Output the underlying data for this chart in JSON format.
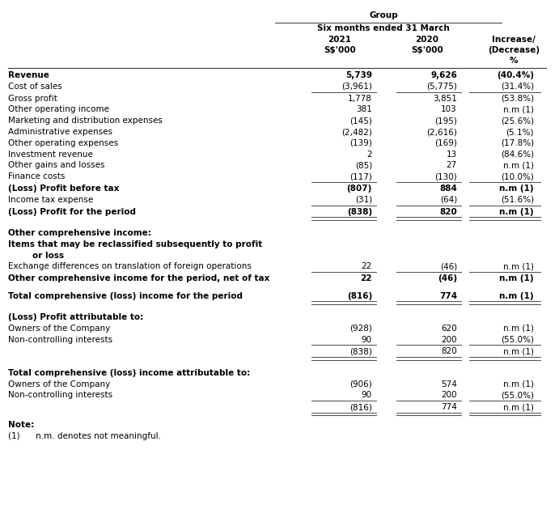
{
  "title": "Group",
  "subtitle": "Six months ended 31 March",
  "col_headers_line1": [
    "2021",
    "2020",
    "Increase/"
  ],
  "col_headers_line2": [
    "S$’000",
    "S$’000",
    "(Decrease)"
  ],
  "col_headers_line3": [
    "",
    "",
    "%"
  ],
  "rows": [
    {
      "label": "Revenue",
      "bold": true,
      "val2021": "5,739",
      "val2020": "9,626",
      "change": "(40.4%)",
      "indent": 0,
      "underline_after": false,
      "double_underline_after": false,
      "spacer": false,
      "empty_label": false
    },
    {
      "label": "Cost of sales",
      "bold": false,
      "val2021": "(3,961)",
      "val2020": "(5,775)",
      "change": "(31.4%)",
      "indent": 0,
      "underline_after": true,
      "double_underline_after": false,
      "spacer": false,
      "empty_label": false
    },
    {
      "label": "Gross profit",
      "bold": false,
      "val2021": "1,778",
      "val2020": "3,851",
      "change": "(53.8%)",
      "indent": 0,
      "underline_after": false,
      "double_underline_after": false,
      "spacer": false,
      "empty_label": false
    },
    {
      "label": "Other operating income",
      "bold": false,
      "val2021": "381",
      "val2020": "103",
      "change": "n.m (1)",
      "indent": 0,
      "underline_after": false,
      "double_underline_after": false,
      "spacer": false,
      "empty_label": false
    },
    {
      "label": "Marketing and distribution expenses",
      "bold": false,
      "val2021": "(145)",
      "val2020": "(195)",
      "change": "(25.6%)",
      "indent": 0,
      "underline_after": false,
      "double_underline_after": false,
      "spacer": false,
      "empty_label": false
    },
    {
      "label": "Administrative expenses",
      "bold": false,
      "val2021": "(2,482)",
      "val2020": "(2,616)",
      "change": "(5.1%)",
      "indent": 0,
      "underline_after": false,
      "double_underline_after": false,
      "spacer": false,
      "empty_label": false
    },
    {
      "label": "Other operating expenses",
      "bold": false,
      "val2021": "(139)",
      "val2020": "(169)",
      "change": "(17.8%)",
      "indent": 0,
      "underline_after": false,
      "double_underline_after": false,
      "spacer": false,
      "empty_label": false
    },
    {
      "label": "Investment revenue",
      "bold": false,
      "val2021": "2",
      "val2020": "13",
      "change": "(84.6%)",
      "indent": 0,
      "underline_after": false,
      "double_underline_after": false,
      "spacer": false,
      "empty_label": false
    },
    {
      "label": "Other gains and losses",
      "bold": false,
      "val2021": "(85)",
      "val2020": "27",
      "change": "n.m (1)",
      "indent": 0,
      "underline_after": false,
      "double_underline_after": false,
      "spacer": false,
      "empty_label": false
    },
    {
      "label": "Finance costs",
      "bold": false,
      "val2021": "(117)",
      "val2020": "(130)",
      "change": "(10.0%)",
      "indent": 0,
      "underline_after": true,
      "double_underline_after": false,
      "spacer": false,
      "empty_label": false
    },
    {
      "label": "(Loss) Profit before tax",
      "bold": true,
      "val2021": "(807)",
      "val2020": "884",
      "change": "n.m (1)",
      "indent": 0,
      "underline_after": false,
      "double_underline_after": false,
      "spacer": false,
      "empty_label": false
    },
    {
      "label": "Income tax expense",
      "bold": false,
      "val2021": "(31)",
      "val2020": "(64)",
      "change": "(51.6%)",
      "indent": 0,
      "underline_after": true,
      "double_underline_after": false,
      "spacer": false,
      "empty_label": false
    },
    {
      "label": "(Loss) Profit for the period",
      "bold": true,
      "val2021": "(838)",
      "val2020": "820",
      "change": "n.m (1)",
      "indent": 0,
      "underline_after": false,
      "double_underline_after": true,
      "spacer": false,
      "empty_label": false
    },
    {
      "label": "",
      "bold": false,
      "val2021": "",
      "val2020": "",
      "change": "",
      "indent": 0,
      "underline_after": false,
      "double_underline_after": false,
      "spacer": true,
      "empty_label": false
    },
    {
      "label": "Other comprehensive income:",
      "bold": true,
      "val2021": "",
      "val2020": "",
      "change": "",
      "indent": 0,
      "underline_after": false,
      "double_underline_after": false,
      "spacer": false,
      "empty_label": false
    },
    {
      "label": "Items that may be reclassified subsequently to profit",
      "bold": true,
      "val2021": "",
      "val2020": "",
      "change": "",
      "indent": 0,
      "underline_after": false,
      "double_underline_after": false,
      "spacer": false,
      "empty_label": false
    },
    {
      "label": "or loss",
      "bold": true,
      "val2021": "",
      "val2020": "",
      "change": "",
      "indent": 1,
      "underline_after": false,
      "double_underline_after": false,
      "spacer": false,
      "empty_label": false
    },
    {
      "label": "Exchange differences on translation of foreign operations",
      "bold": false,
      "val2021": "22",
      "val2020": "(46)",
      "change": "n.m (1)",
      "indent": 0,
      "underline_after": true,
      "double_underline_after": false,
      "spacer": false,
      "empty_label": false
    },
    {
      "label": "Other comprehensive income for the period, net of tax",
      "bold": true,
      "val2021": "22",
      "val2020": "(46)",
      "change": "n.m (1)",
      "indent": 0,
      "underline_after": false,
      "double_underline_after": false,
      "spacer": false,
      "empty_label": false
    },
    {
      "label": "",
      "bold": false,
      "val2021": "",
      "val2020": "",
      "change": "",
      "indent": 0,
      "underline_after": false,
      "double_underline_after": false,
      "spacer": true,
      "empty_label": false
    },
    {
      "label": "Total comprehensive (loss) income for the period",
      "bold": true,
      "val2021": "(816)",
      "val2020": "774",
      "change": "n.m (1)",
      "indent": 0,
      "underline_after": false,
      "double_underline_after": true,
      "spacer": false,
      "empty_label": false
    },
    {
      "label": "",
      "bold": false,
      "val2021": "",
      "val2020": "",
      "change": "",
      "indent": 0,
      "underline_after": false,
      "double_underline_after": false,
      "spacer": true,
      "empty_label": false
    },
    {
      "label": "(Loss) Profit attributable to:",
      "bold": true,
      "val2021": "",
      "val2020": "",
      "change": "",
      "indent": 0,
      "underline_after": false,
      "double_underline_after": false,
      "spacer": false,
      "empty_label": false
    },
    {
      "label": "Owners of the Company",
      "bold": false,
      "val2021": "(928)",
      "val2020": "620",
      "change": "n.m (1)",
      "indent": 0,
      "underline_after": false,
      "double_underline_after": false,
      "spacer": false,
      "empty_label": false
    },
    {
      "label": "Non-controlling interests",
      "bold": false,
      "val2021": "90",
      "val2020": "200",
      "change": "(55.0%)",
      "indent": 0,
      "underline_after": true,
      "double_underline_after": false,
      "spacer": false,
      "empty_label": false
    },
    {
      "label": "",
      "bold": false,
      "val2021": "(838)",
      "val2020": "820",
      "change": "n.m (1)",
      "indent": 0,
      "underline_after": false,
      "double_underline_after": true,
      "spacer": false,
      "empty_label": true
    },
    {
      "label": "",
      "bold": false,
      "val2021": "",
      "val2020": "",
      "change": "",
      "indent": 0,
      "underline_after": false,
      "double_underline_after": false,
      "spacer": true,
      "empty_label": false
    },
    {
      "label": "Total comprehensive (loss) income attributable to:",
      "bold": true,
      "val2021": "",
      "val2020": "",
      "change": "",
      "indent": 0,
      "underline_after": false,
      "double_underline_after": false,
      "spacer": false,
      "empty_label": false
    },
    {
      "label": "Owners of the Company",
      "bold": false,
      "val2021": "(906)",
      "val2020": "574",
      "change": "n.m (1)",
      "indent": 0,
      "underline_after": false,
      "double_underline_after": false,
      "spacer": false,
      "empty_label": false
    },
    {
      "label": "Non-controlling interests",
      "bold": false,
      "val2021": "90",
      "val2020": "200",
      "change": "(55.0%)",
      "indent": 0,
      "underline_after": true,
      "double_underline_after": false,
      "spacer": false,
      "empty_label": false
    },
    {
      "label": "",
      "bold": false,
      "val2021": "(816)",
      "val2020": "774",
      "change": "n.m (1)",
      "indent": 0,
      "underline_after": false,
      "double_underline_after": true,
      "spacer": false,
      "empty_label": true
    }
  ],
  "note_title": "Note:",
  "note_text": "(1)      n.m. denotes not meaningful.",
  "bg_color": "#ffffff",
  "text_color": "#000000",
  "line_color": "#4a4a4a",
  "font_size": 7.5,
  "header_font_size": 7.5
}
